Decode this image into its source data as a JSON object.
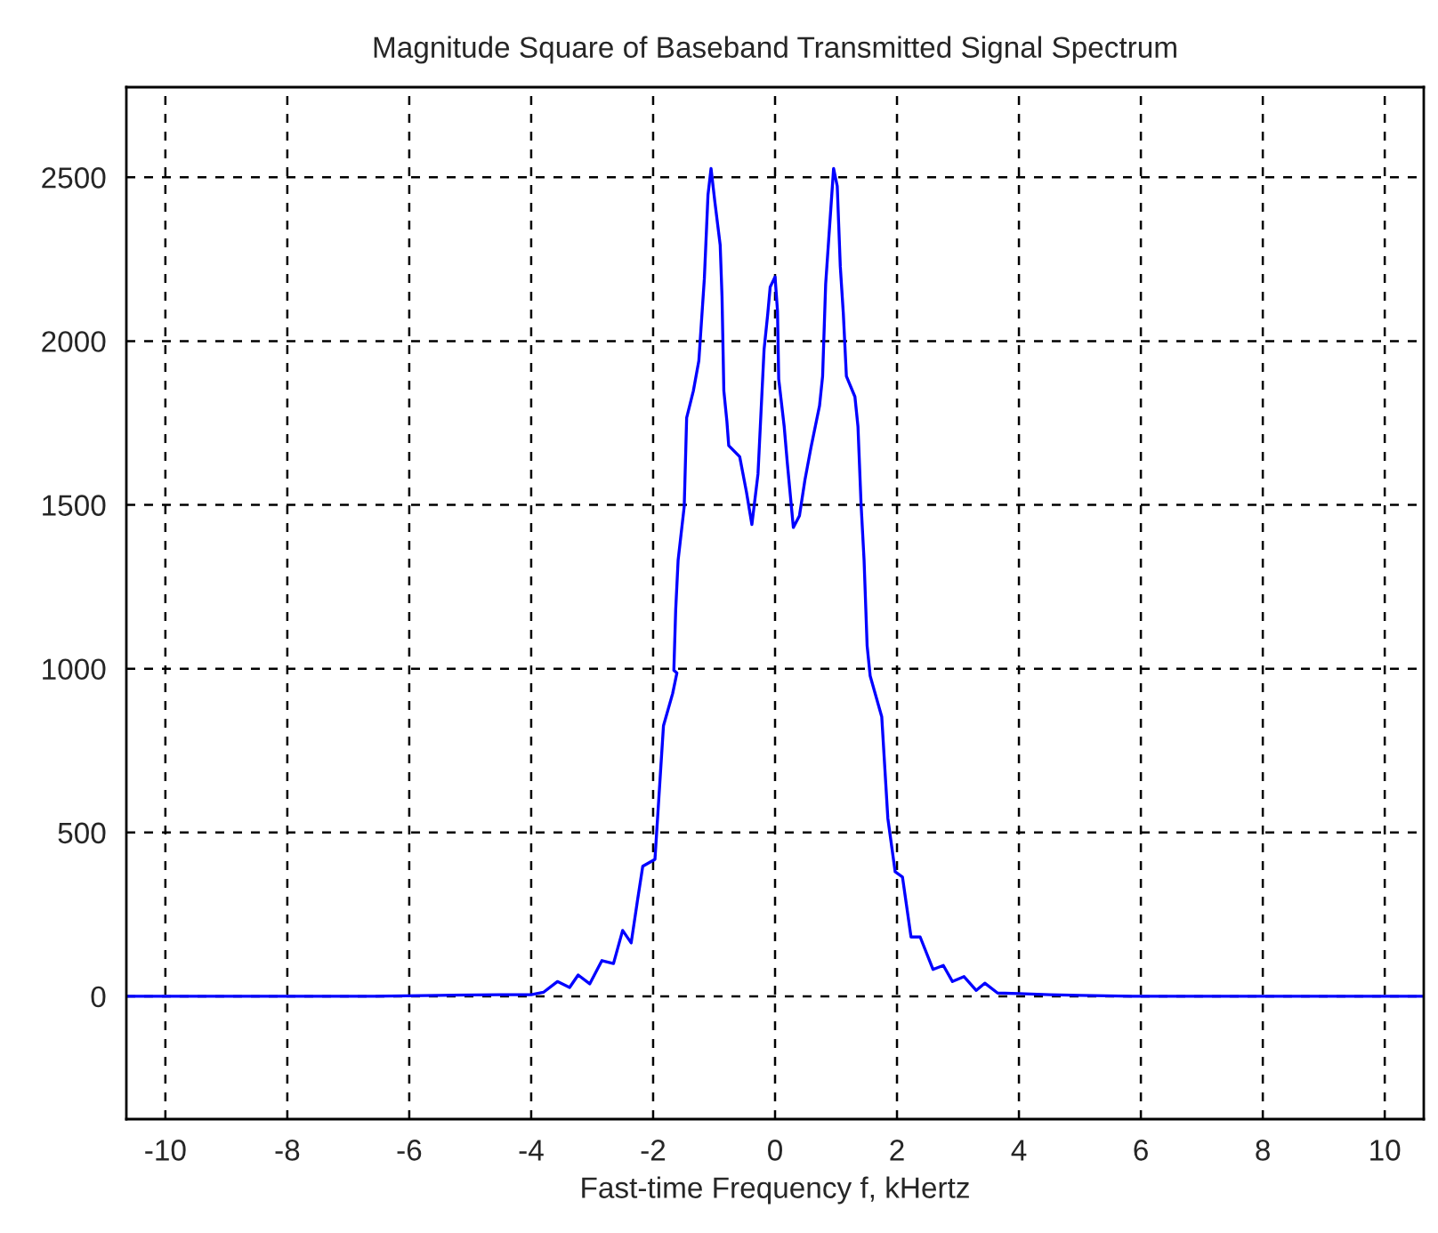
{
  "chart_data": {
    "type": "line",
    "title": "Magnitude Square of Baseband Transmitted Signal Spectrum",
    "xlabel": "Fast-time Frequency f, kHertz",
    "series": [
      {
        "color": "#0000ff",
        "x": [
          -10.64,
          -6.58,
          -5.5,
          -4.5,
          -4.0,
          -3.8,
          -3.57,
          -3.37,
          -3.23,
          -3.04,
          -2.84,
          -2.65,
          -2.5,
          -2.36,
          -2.26,
          -2.17,
          -1.97,
          -1.89,
          -1.83,
          -1.68,
          -1.61,
          -1.66,
          -1.63,
          -1.59,
          -1.49,
          -1.45,
          -1.34,
          -1.25,
          -1.16,
          -1.1,
          -1.05,
          -0.99,
          -0.9,
          -0.87,
          -0.84,
          -0.79,
          -0.76,
          -0.58,
          -0.47,
          -0.38,
          -0.28,
          -0.18,
          -0.12,
          -0.08,
          0.0,
          0.04,
          0.06,
          0.15,
          0.2,
          0.3,
          0.4,
          0.49,
          0.59,
          0.73,
          0.78,
          0.83,
          0.88,
          0.96,
          1.02,
          1.07,
          1.12,
          1.17,
          1.31,
          1.36,
          1.41,
          1.46,
          1.51,
          1.56,
          1.75,
          1.85,
          1.97,
          2.09,
          2.23,
          2.38,
          2.59,
          2.76,
          2.91,
          3.1,
          3.3,
          3.44,
          3.65,
          4.0,
          4.5,
          5.0,
          5.9,
          10.64
        ],
        "values": [
          0,
          0,
          3,
          5,
          5,
          12,
          45,
          27,
          65,
          38,
          109,
          100,
          201,
          163,
          288,
          397,
          418,
          652,
          826,
          924,
          987,
          995,
          1179,
          1331,
          1495,
          1766,
          1848,
          1940,
          2190,
          2446,
          2527,
          2429,
          2293,
          2136,
          1848,
          1755,
          1681,
          1647,
          1540,
          1440,
          1594,
          1975,
          2083,
          2165,
          2196,
          2092,
          1884,
          1739,
          1630,
          1431,
          1467,
          1576,
          1676,
          1803,
          1893,
          2174,
          2310,
          2527,
          2473,
          2228,
          2083,
          1893,
          1830,
          1739,
          1505,
          1331,
          1070,
          978,
          853,
          543,
          380,
          364,
          181,
          181,
          82,
          94,
          45,
          60,
          18,
          40,
          10,
          8,
          5,
          3,
          0,
          0
        ]
      }
    ],
    "xlim": [
      -10.64,
      10.64
    ],
    "xticks": [
      -10,
      -8,
      -6,
      -4,
      -2,
      0,
      2,
      4,
      6,
      8,
      10
    ],
    "ylim": [
      -375,
      2775
    ],
    "yticks": [
      0,
      500,
      1000,
      1500,
      2000,
      2500
    ],
    "grid": true,
    "line_style": "solid"
  }
}
